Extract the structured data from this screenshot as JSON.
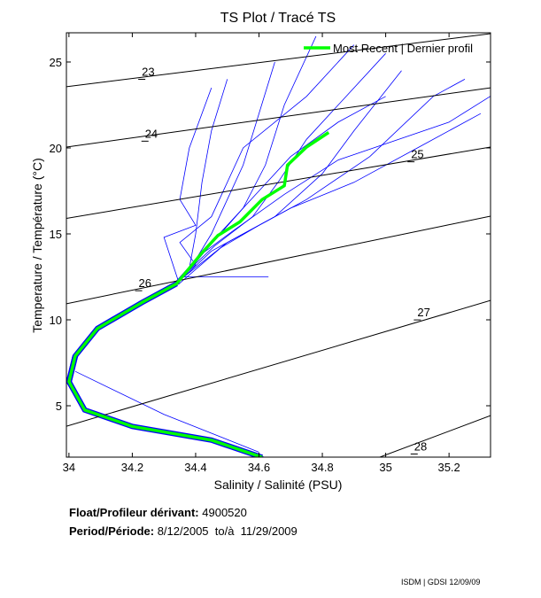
{
  "chart_data": {
    "type": "line",
    "title": "TS Plot / Tracé TS",
    "xlabel": "Salinity / Salinité (PSU)",
    "ylabel": "Temperature / Température (°C)",
    "xlim": [
      33.992,
      35.331
    ],
    "ylim": [
      2.01,
      26.7
    ],
    "xticks": [
      34,
      34.2,
      34.4,
      34.6,
      34.8,
      35,
      35.2
    ],
    "xtick_labels": [
      "34",
      "34.2",
      "34.4",
      "34.6",
      "34.8",
      "35",
      "35.2"
    ],
    "yticks": [
      5,
      10,
      15,
      20,
      25
    ],
    "ytick_labels": [
      "5",
      "10",
      "15",
      "20",
      "25"
    ],
    "grid": false,
    "legend": {
      "placement": "top-right",
      "entries": [
        {
          "label": "Most Recent | Dernier profil",
          "color": "#00ff00"
        }
      ]
    },
    "density_contours": [
      {
        "label": "23",
        "points": [
          [
            33.992,
            23.56
          ],
          [
            35.331,
            26.65
          ]
        ],
        "label_at": [
          34.23,
          24.2
        ]
      },
      {
        "label": "24",
        "points": [
          [
            33.992,
            20.05
          ],
          [
            35.331,
            23.5
          ]
        ],
        "label_at": [
          34.24,
          20.6
        ]
      },
      {
        "label": "25",
        "points": [
          [
            33.992,
            15.9
          ],
          [
            35.331,
            20.05
          ]
        ],
        "label_at": [
          35.08,
          19.4
        ]
      },
      {
        "label": "26",
        "points": [
          [
            33.992,
            10.93
          ],
          [
            35.331,
            16.03
          ]
        ],
        "label_at": [
          34.22,
          11.9
        ]
      },
      {
        "label": "27",
        "points": [
          [
            33.992,
            3.81
          ],
          [
            35.331,
            11.13
          ]
        ],
        "label_at": [
          35.1,
          10.2
        ]
      },
      {
        "label": "28",
        "points": [
          [
            34.98,
            2.0
          ],
          [
            35.331,
            4.43
          ]
        ],
        "label_at": [
          35.09,
          2.4
        ]
      }
    ],
    "deep_common": [
      [
        34.61,
        2.0
      ],
      [
        34.45,
        3.0
      ],
      [
        34.2,
        3.8
      ],
      [
        34.05,
        4.75
      ],
      [
        34.0,
        6.4
      ],
      [
        34.02,
        7.9
      ],
      [
        34.09,
        9.5
      ],
      [
        34.23,
        11.0
      ],
      [
        34.34,
        12.1
      ]
    ],
    "historical_profiles": [
      [
        [
          34.42,
          13.9
        ],
        [
          34.5,
          15.5
        ],
        [
          34.6,
          17.5
        ],
        [
          34.7,
          19.5
        ],
        [
          34.85,
          21.5
        ],
        [
          35.0,
          23
        ]
      ],
      [
        [
          34.4,
          13.5
        ],
        [
          34.45,
          15
        ],
        [
          34.5,
          17
        ],
        [
          34.55,
          19
        ],
        [
          34.6,
          22
        ],
        [
          34.65,
          25
        ]
      ],
      [
        [
          34.45,
          14
        ],
        [
          34.55,
          15
        ],
        [
          34.7,
          16.5
        ],
        [
          34.9,
          18
        ],
        [
          35.1,
          20
        ],
        [
          35.3,
          22
        ]
      ],
      [
        [
          34.38,
          13
        ],
        [
          34.4,
          15
        ],
        [
          34.42,
          18
        ],
        [
          34.45,
          21
        ],
        [
          34.5,
          24
        ]
      ],
      [
        [
          34.48,
          14.2
        ],
        [
          34.6,
          15.5
        ],
        [
          34.75,
          17
        ],
        [
          34.95,
          19.5
        ],
        [
          35.15,
          23
        ],
        [
          35.25,
          24
        ]
      ],
      [
        [
          34.4,
          13.2
        ],
        [
          34.35,
          14.5
        ],
        [
          34.45,
          16
        ],
        [
          34.55,
          20
        ],
        [
          34.75,
          23
        ],
        [
          34.9,
          26
        ]
      ],
      [
        [
          34.5,
          14.5
        ],
        [
          34.65,
          16
        ],
        [
          34.8,
          18.5
        ],
        [
          34.9,
          21
        ],
        [
          35.05,
          24.5
        ]
      ],
      [
        [
          34.36,
          12.5
        ],
        [
          34.63,
          12.5
        ]
      ],
      [
        [
          34.43,
          14
        ],
        [
          34.55,
          16.5
        ],
        [
          34.62,
          19
        ],
        [
          34.68,
          22.5
        ],
        [
          34.78,
          26.5
        ]
      ],
      [
        [
          34.3,
          14.8
        ],
        [
          34.4,
          15.5
        ],
        [
          34.35,
          17
        ],
        [
          34.38,
          20
        ],
        [
          34.45,
          23.5
        ]
      ],
      [
        [
          34.46,
          14.3
        ],
        [
          34.58,
          16
        ],
        [
          34.66,
          18
        ],
        [
          34.75,
          20.5
        ],
        [
          35.0,
          25.5
        ]
      ],
      [
        [
          34.41,
          13.7
        ],
        [
          34.52,
          15.2
        ],
        [
          34.68,
          17.3
        ],
        [
          34.85,
          19.3
        ],
        [
          35.2,
          21.5
        ],
        [
          35.33,
          23
        ]
      ]
    ],
    "outlier_profile": [
      [
        34.02,
        7.0
      ],
      [
        34.3,
        4.5
      ],
      [
        34.6,
        2.3
      ]
    ],
    "most_recent_profile": [
      [
        34.61,
        2.0
      ],
      [
        34.45,
        3.0
      ],
      [
        34.2,
        3.8
      ],
      [
        34.05,
        4.75
      ],
      [
        34.0,
        6.4
      ],
      [
        34.02,
        7.9
      ],
      [
        34.09,
        9.5
      ],
      [
        34.23,
        11.0
      ],
      [
        34.34,
        12.1
      ],
      [
        34.42,
        13.9
      ],
      [
        34.47,
        14.9
      ],
      [
        34.54,
        15.7
      ],
      [
        34.61,
        17.0
      ],
      [
        34.68,
        17.8
      ],
      [
        34.69,
        19.0
      ],
      [
        34.75,
        20.05
      ],
      [
        34.82,
        20.9
      ]
    ],
    "colors": {
      "historical": "#0000ff",
      "most_recent": "#00ff00",
      "contours": "#000000"
    }
  },
  "info": {
    "float_label": "Float/Profileur dérivant:",
    "float_value": "4900520",
    "period_label": "Period/Période:",
    "period_value": "8/12/2005  to/à  11/29/2009"
  },
  "credit": "ISDM | GDSI  12/09/09"
}
